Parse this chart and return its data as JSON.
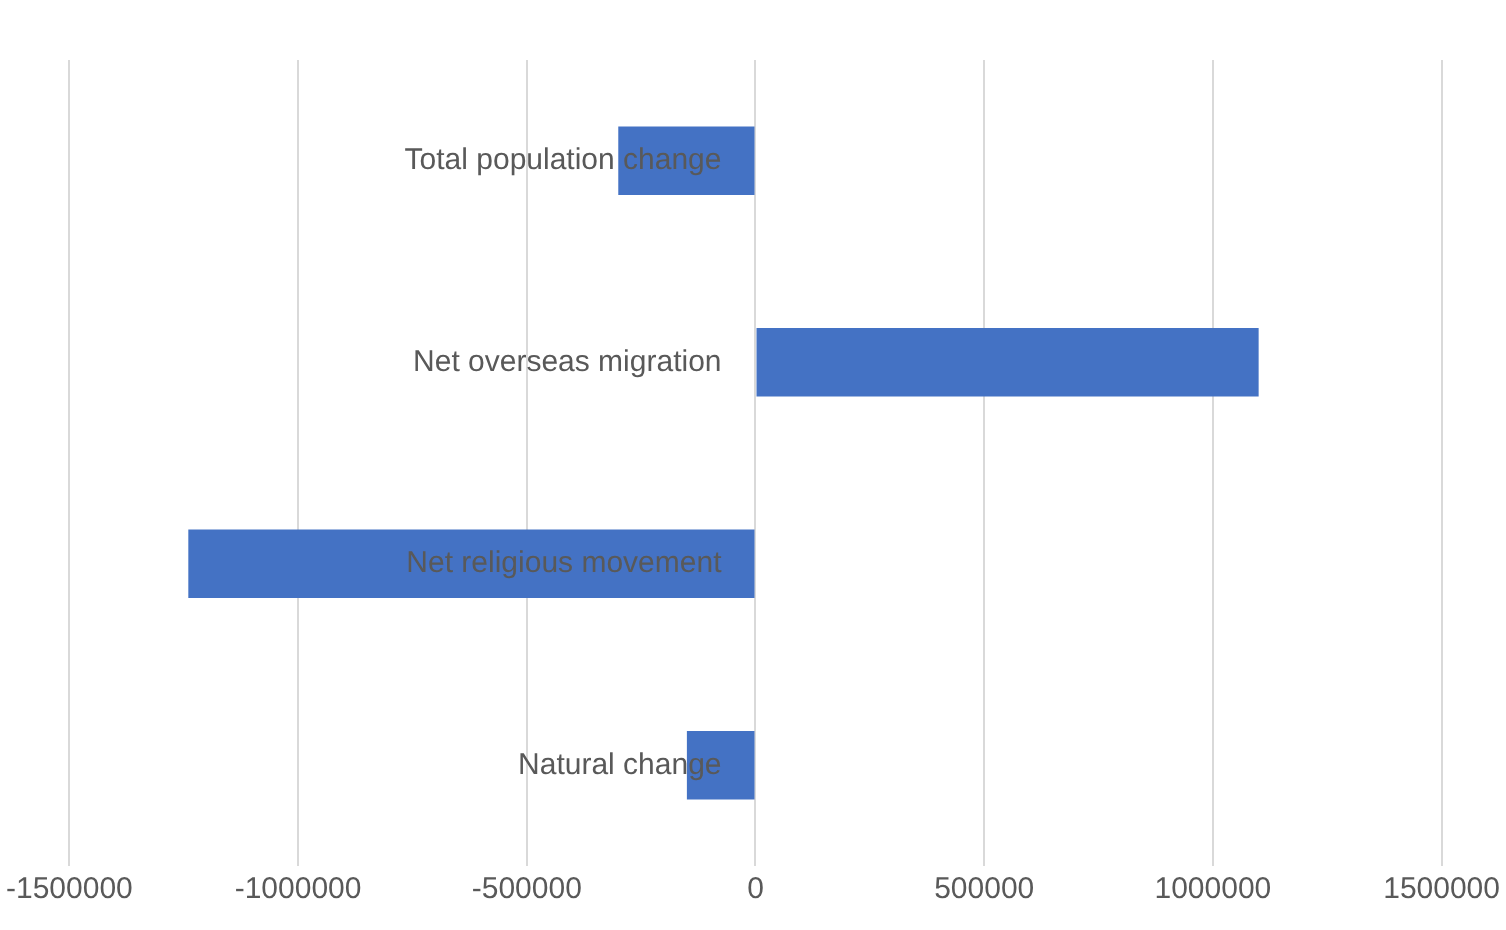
{
  "chart_data": {
    "type": "bar",
    "orientation": "horizontal",
    "categories": [
      "Total population change",
      "Net overseas migration",
      "Net religious movement",
      "Natural change"
    ],
    "values": [
      -300000,
      1100000,
      -1240000,
      -150000
    ],
    "color": "#4472c4",
    "xlim": [
      -1500000,
      1500000
    ],
    "xticks": [
      -1500000,
      -1000000,
      -500000,
      0,
      500000,
      1000000,
      1500000
    ],
    "grid": "x"
  }
}
